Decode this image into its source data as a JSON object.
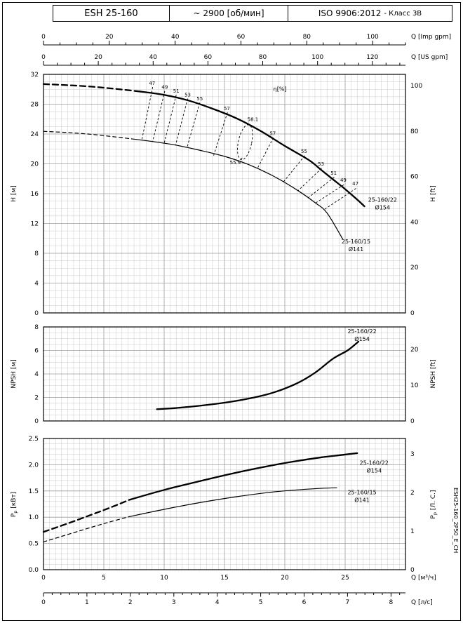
{
  "header": {
    "model": "ESH 25-160",
    "speed": "~ 2900 [об/мин]",
    "standard": "ISO 9906:2012",
    "standard_class": "- Класс 3В"
  },
  "side_code": "ESH25-160_2P50_E_CH",
  "axes": {
    "imp": {
      "unit": "Q [Imp gpm]",
      "major": [
        0,
        20,
        40,
        60,
        80,
        100
      ],
      "minor_step": 5
    },
    "us": {
      "unit": "Q [US gpm]",
      "major": [
        0,
        20,
        40,
        60,
        80,
        100,
        120
      ],
      "minor_step": 5
    },
    "m3h": {
      "unit": "Q [м³/ч]",
      "major": [
        0,
        5,
        10,
        15,
        20,
        25
      ]
    },
    "ls": {
      "unit": "Q [л/с]",
      "major": [
        0,
        1,
        2,
        3,
        4,
        5,
        6,
        7,
        8
      ],
      "minor_step": 0.2
    }
  },
  "chart_data": [
    {
      "name": "head-capacity",
      "type": "line",
      "xlabel": "Q [м³/ч]",
      "x_range": [
        0,
        30
      ],
      "ylim": [
        0,
        32
      ],
      "ylabel_left": {
        "text": "H [м]"
      },
      "ylabel_right": {
        "text": "H [ft]"
      },
      "yticks_left": [
        0,
        4,
        8,
        12,
        16,
        20,
        24,
        28,
        32
      ],
      "yticks_right": [
        0,
        20,
        40,
        60,
        80,
        100
      ],
      "series": [
        {
          "name": "25-160/22 Ø154 extrapolated",
          "style": "thick_dash",
          "points": [
            [
              0,
              30.7
            ],
            [
              2,
              30.55
            ],
            [
              4,
              30.35
            ],
            [
              6,
              30.05
            ],
            [
              8,
              29.7
            ]
          ]
        },
        {
          "name": "25-160/22 Ø154",
          "style": "thick",
          "points": [
            [
              8,
              29.7
            ],
            [
              10,
              29.25
            ],
            [
              12,
              28.5
            ],
            [
              14,
              27.4
            ],
            [
              16,
              26.1
            ],
            [
              18,
              24.4
            ],
            [
              20,
              22.4
            ],
            [
              22,
              20.5
            ],
            [
              23,
              19.2
            ],
            [
              24,
              17.9
            ],
            [
              25,
              16.6
            ],
            [
              26,
              15.2
            ],
            [
              26.6,
              14.3
            ]
          ]
        },
        {
          "name": "25-160/15 Ø141 extrapolated",
          "style": "thin_dash",
          "points": [
            [
              0,
              24.35
            ],
            [
              2,
              24.2
            ],
            [
              4,
              23.95
            ],
            [
              6,
              23.6
            ],
            [
              7.3,
              23.35
            ]
          ]
        },
        {
          "name": "25-160/15 Ø141",
          "style": "thin",
          "points": [
            [
              7.3,
              23.35
            ],
            [
              9,
              23.0
            ],
            [
              11,
              22.5
            ],
            [
              13,
              21.8
            ],
            [
              15,
              21.0
            ],
            [
              17,
              19.9
            ],
            [
              19,
              18.4
            ],
            [
              21,
              16.5
            ],
            [
              22.5,
              14.8
            ],
            [
              23.5,
              13.4
            ],
            [
              24.8,
              9.9
            ]
          ]
        }
      ],
      "labels": [
        {
          "text": "47",
          "q": 9.0,
          "v": 30.6
        },
        {
          "text": "49",
          "q": 10.05,
          "v": 30.05
        },
        {
          "text": "51",
          "q": 11.0,
          "v": 29.55
        },
        {
          "text": "53",
          "q": 11.95,
          "v": 29.05
        },
        {
          "text": "55",
          "q": 12.95,
          "v": 28.5
        },
        {
          "text": "57",
          "q": 15.2,
          "v": 27.2
        },
        {
          "text": "58.1",
          "q": 17.35,
          "v": 25.75
        },
        {
          "text": "57",
          "q": 19.0,
          "v": 23.85
        },
        {
          "text": "55",
          "q": 21.6,
          "v": 21.45
        },
        {
          "text": "53",
          "q": 23.0,
          "v": 19.75
        },
        {
          "text": "51",
          "q": 24.05,
          "v": 18.55
        },
        {
          "text": "49",
          "q": 24.85,
          "v": 17.6
        },
        {
          "text": "47",
          "q": 25.85,
          "v": 17.15
        },
        {
          "text": "55.9",
          "q": 15.9,
          "v": 19.95
        },
        {
          "text": "η[%]",
          "q": 19.6,
          "v": 29.8,
          "big": true
        }
      ],
      "iso_lines": [
        {
          "p": [
            9.05,
            30.3,
            8.15,
            23.2
          ]
        },
        {
          "p": [
            10.05,
            29.75,
            9.05,
            23.0
          ]
        },
        {
          "p": [
            11.0,
            29.25,
            10.0,
            22.75
          ]
        },
        {
          "p": [
            11.95,
            28.75,
            10.95,
            22.5
          ]
        },
        {
          "p": [
            12.95,
            28.2,
            11.9,
            22.2
          ]
        },
        {
          "p": [
            15.25,
            26.9,
            14.1,
            21.1
          ]
        },
        {
          "p": [
            19.05,
            23.5,
            17.7,
            19.3
          ]
        },
        {
          "p": [
            21.65,
            21.1,
            19.9,
            17.6
          ]
        },
        {
          "p": [
            23.05,
            19.4,
            21.1,
            16.4
          ]
        },
        {
          "p": [
            24.1,
            18.2,
            21.9,
            15.4
          ]
        },
        {
          "p": [
            24.9,
            17.2,
            22.5,
            14.7
          ]
        },
        {
          "p": [
            25.9,
            16.7,
            23.2,
            13.8
          ]
        },
        {
          "p": [
            16.1,
            20.25,
            16.5,
            20.85
          ]
        }
      ],
      "iso_loop": {
        "cx": 16.7,
        "cy": 22.9,
        "rx": 0.55,
        "ry": 2.4,
        "rot": 12
      },
      "curve_labels": [
        {
          "lines": [
            "25-160/22",
            "Ø154"
          ],
          "q": 28.1,
          "v": 14.9
        },
        {
          "lines": [
            "25-160/15",
            "Ø141"
          ],
          "q": 25.9,
          "v": 9.3
        }
      ]
    },
    {
      "name": "npsh",
      "type": "line",
      "xlabel": "Q [м³/ч]",
      "x_range": [
        0,
        30
      ],
      "ylim": [
        0,
        8
      ],
      "ylabel_left": {
        "text": "NPSH [м]"
      },
      "ylabel_right": {
        "text": "NPSH [ft]"
      },
      "yticks_left": [
        0,
        2,
        4,
        6,
        8
      ],
      "yticks_right": [
        0,
        10,
        20
      ],
      "series": [
        {
          "name": "25-160/22 Ø154",
          "style": "thick",
          "points": [
            [
              9.4,
              1.0
            ],
            [
              11,
              1.1
            ],
            [
              13,
              1.3
            ],
            [
              15,
              1.55
            ],
            [
              17,
              1.9
            ],
            [
              19,
              2.4
            ],
            [
              21,
              3.2
            ],
            [
              22.5,
              4.1
            ],
            [
              24,
              5.3
            ],
            [
              25.2,
              6.0
            ],
            [
              26.1,
              6.75
            ]
          ]
        }
      ],
      "curve_labels": [
        {
          "lines": [
            "25-160/22",
            "Ø154"
          ],
          "q": 26.4,
          "v": 7.45
        }
      ]
    },
    {
      "name": "power",
      "type": "line",
      "xlabel": "Q [м³/ч]",
      "x_range": [
        0,
        30
      ],
      "ylim": [
        0,
        2.5
      ],
      "ylabel_left": {
        "pre": "P",
        "sub": "p",
        "post": "[кВт]"
      },
      "ylabel_right": {
        "pre": "P",
        "sub": "p",
        "post": "[Л. С.]"
      },
      "yticks_left": [
        "0.0",
        "0.5",
        "1.0",
        "1.5",
        "2.0",
        "2.5"
      ],
      "yticks_right": [
        0,
        1,
        2,
        3
      ],
      "series": [
        {
          "name": "25-160/22 Ø154 extrapolated",
          "style": "thick_dash",
          "points": [
            [
              0,
              0.72
            ],
            [
              2,
              0.88
            ],
            [
              4,
              1.05
            ],
            [
              5.5,
              1.18
            ],
            [
              7.1,
              1.33
            ]
          ]
        },
        {
          "name": "25-160/22 Ø154",
          "style": "thick",
          "points": [
            [
              7.1,
              1.33
            ],
            [
              10,
              1.52
            ],
            [
              13,
              1.69
            ],
            [
              16,
              1.85
            ],
            [
              19,
              1.99
            ],
            [
              21,
              2.07
            ],
            [
              23,
              2.14
            ],
            [
              24.5,
              2.18
            ],
            [
              26,
              2.22
            ]
          ]
        },
        {
          "name": "25-160/15 Ø141 extrapolated",
          "style": "thin_dash",
          "points": [
            [
              0,
              0.53
            ],
            [
              2,
              0.67
            ],
            [
              4,
              0.81
            ],
            [
              5.5,
              0.91
            ],
            [
              7.1,
              1.01
            ]
          ]
        },
        {
          "name": "25-160/15 Ø141",
          "style": "thin",
          "points": [
            [
              7.1,
              1.01
            ],
            [
              10,
              1.15
            ],
            [
              13,
              1.28
            ],
            [
              16,
              1.39
            ],
            [
              19,
              1.48
            ],
            [
              21,
              1.52
            ],
            [
              23,
              1.55
            ],
            [
              24.3,
              1.56
            ]
          ]
        }
      ],
      "curve_labels": [
        {
          "lines": [
            "25-160/22",
            "Ø154"
          ],
          "q": 27.4,
          "v": 2.0
        },
        {
          "lines": [
            "25-160/15",
            "Ø141"
          ],
          "q": 26.4,
          "v": 1.44
        }
      ]
    }
  ]
}
